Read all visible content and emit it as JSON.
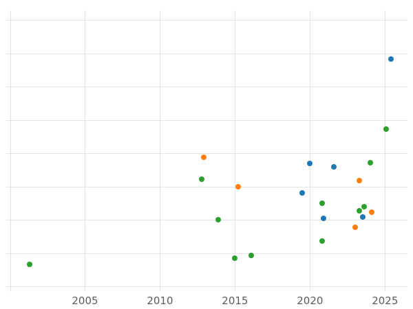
{
  "chart_data": {
    "type": "scatter",
    "title": "",
    "xlabel": "",
    "ylabel": "",
    "grid": true,
    "legend_position": "none",
    "xlim": [
      1999.7,
      2026.5
    ],
    "ylim": [
      0,
      8.2
    ],
    "x_tick_labels": [
      "2005",
      "2010",
      "2015",
      "2020",
      "2025"
    ],
    "x_ticks": [
      2005,
      2010,
      2015,
      2020,
      2025
    ],
    "x_gridlines": [
      2000,
      2005,
      2010,
      2015,
      2020,
      2025
    ],
    "y_gridlines": [
      0,
      1,
      2,
      3,
      4,
      5,
      6,
      7,
      8
    ],
    "series": [
      {
        "name": "blue",
        "color": "#1f77b4",
        "points": [
          [
            2019.5,
            2.8
          ],
          [
            2020.0,
            3.69
          ],
          [
            2020.9,
            2.04
          ],
          [
            2021.6,
            3.59
          ],
          [
            2023.5,
            2.08
          ],
          [
            2025.4,
            6.82
          ]
        ]
      },
      {
        "name": "orange",
        "color": "#ff7f0e",
        "points": [
          [
            2012.9,
            3.88
          ],
          [
            2015.2,
            2.99
          ],
          [
            2023.0,
            1.77
          ],
          [
            2023.3,
            3.17
          ],
          [
            2024.1,
            2.23
          ]
        ]
      },
      {
        "name": "green",
        "color": "#2ca02c",
        "points": [
          [
            2001.3,
            0.66
          ],
          [
            2012.8,
            3.22
          ],
          [
            2013.9,
            2.0
          ],
          [
            2015.0,
            0.85
          ],
          [
            2016.1,
            0.93
          ],
          [
            2020.8,
            2.49
          ],
          [
            2020.8,
            1.36
          ],
          [
            2023.3,
            2.27
          ],
          [
            2023.6,
            2.39
          ],
          [
            2024.0,
            3.71
          ],
          [
            2025.1,
            4.72
          ]
        ]
      }
    ]
  }
}
